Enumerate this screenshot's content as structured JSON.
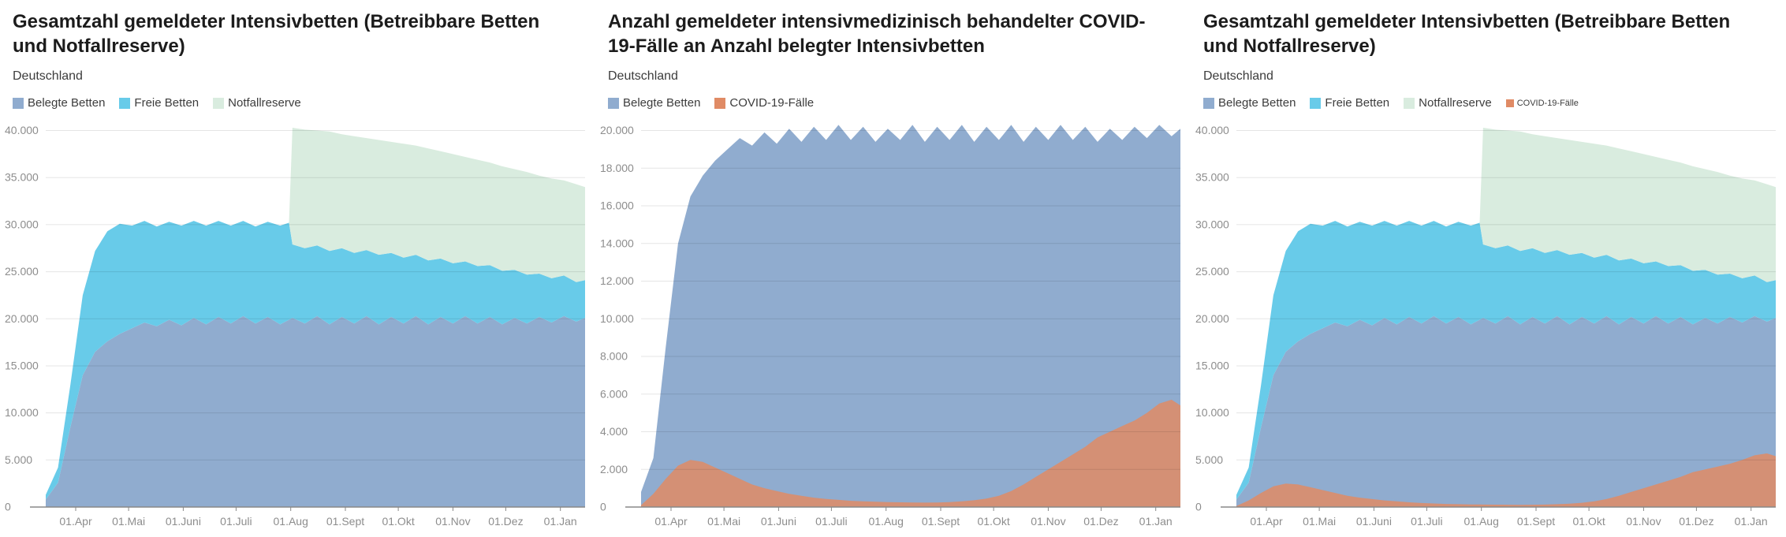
{
  "page": {
    "background": "#ffffff"
  },
  "chart_data": [
    {
      "type": "area",
      "stacked": true,
      "title": "Gesamtzahl gemeldeter Intensivbetten (Betreibbare Betten und Notfallreserve)",
      "subtitle": "Deutschland",
      "x_axis": {
        "unit": "day-index",
        "domain_days": [
          0,
          306
        ],
        "ticks": [
          {
            "day": 17,
            "label": "01.Apr"
          },
          {
            "day": 47,
            "label": "01.Mai"
          },
          {
            "day": 78,
            "label": "01.Juni"
          },
          {
            "day": 108,
            "label": "01.Juli"
          },
          {
            "day": 139,
            "label": "01.Aug"
          },
          {
            "day": 170,
            "label": "01.Sept"
          },
          {
            "day": 200,
            "label": "01.Okt"
          },
          {
            "day": 231,
            "label": "01.Nov"
          },
          {
            "day": 261,
            "label": "01.Dez"
          },
          {
            "day": 292,
            "label": "01.Jan"
          }
        ]
      },
      "y_axis": {
        "min": 0,
        "max": 40000,
        "plot_max": 40800,
        "ticks": [
          {
            "value": 0,
            "label": "0"
          },
          {
            "value": 5000,
            "label": "5.000"
          },
          {
            "value": 10000,
            "label": "10.000"
          },
          {
            "value": 15000,
            "label": "15.000"
          },
          {
            "value": 20000,
            "label": "20.000"
          },
          {
            "value": 25000,
            "label": "25.000"
          },
          {
            "value": 30000,
            "label": "30.000"
          },
          {
            "value": 35000,
            "label": "35.000"
          },
          {
            "value": 40000,
            "label": "40.000"
          }
        ]
      },
      "days": [
        0,
        7,
        14,
        21,
        28,
        35,
        42,
        49,
        56,
        63,
        70,
        77,
        84,
        91,
        98,
        105,
        112,
        119,
        126,
        133,
        138,
        140,
        147,
        154,
        161,
        168,
        175,
        182,
        189,
        196,
        203,
        210,
        217,
        224,
        231,
        238,
        245,
        252,
        259,
        266,
        273,
        280,
        287,
        294,
        301,
        306
      ],
      "series": [
        {
          "name": "Belegte Betten",
          "color": "#90accf",
          "opacity": 1,
          "stacked": true,
          "values": [
            800,
            2600,
            8500,
            14000,
            16500,
            17600,
            18400,
            19000,
            19600,
            19200,
            19900,
            19300,
            20100,
            19400,
            20200,
            19500,
            20300,
            19500,
            20200,
            19400,
            19900,
            20100,
            19500,
            20300,
            19400,
            20200,
            19500,
            20300,
            19400,
            20200,
            19500,
            20300,
            19400,
            20200,
            19500,
            20300,
            19500,
            20200,
            19400,
            20100,
            19500,
            20200,
            19600,
            20300,
            19700,
            20100
          ]
        },
        {
          "name": "Freie Betten",
          "color": "#68cbe9",
          "opacity": 1,
          "stacked": true,
          "values": [
            500,
            1600,
            4500,
            8500,
            10700,
            11700,
            11700,
            10900,
            10800,
            10600,
            10400,
            10600,
            10300,
            10500,
            10200,
            10400,
            10100,
            10300,
            10100,
            10500,
            10300,
            7800,
            8000,
            7500,
            7800,
            7300,
            7500,
            7000,
            7400,
            6800,
            7000,
            6500,
            6800,
            6200,
            6400,
            5800,
            6100,
            5500,
            5700,
            5100,
            5200,
            4600,
            4700,
            4300,
            4200,
            4000
          ]
        },
        {
          "name": "Notfallreserve",
          "color": "#d9ecdf",
          "opacity": 1,
          "stacked": true,
          "values": [
            0,
            0,
            0,
            0,
            0,
            0,
            0,
            0,
            0,
            0,
            0,
            0,
            0,
            0,
            0,
            0,
            0,
            0,
            0,
            0,
            0,
            12400,
            12600,
            12200,
            12700,
            12100,
            12400,
            11900,
            12200,
            11800,
            12100,
            11600,
            11900,
            11400,
            11600,
            11100,
            11300,
            10900,
            11100,
            10700,
            10900,
            10400,
            10600,
            10100,
            10400,
            9900
          ]
        }
      ]
    },
    {
      "type": "area",
      "stacked": false,
      "title": "Anzahl gemeldeter intensivmedizinisch behandelter COVID-19-Fälle an Anzahl belegter Intensivbetten",
      "subtitle": "Deutschland",
      "x_axis": {
        "unit": "day-index",
        "domain_days": [
          0,
          306
        ],
        "ticks": [
          {
            "day": 17,
            "label": "01.Apr"
          },
          {
            "day": 47,
            "label": "01.Mai"
          },
          {
            "day": 78,
            "label": "01.Juni"
          },
          {
            "day": 108,
            "label": "01.Juli"
          },
          {
            "day": 139,
            "label": "01.Aug"
          },
          {
            "day": 170,
            "label": "01.Sept"
          },
          {
            "day": 200,
            "label": "01.Okt"
          },
          {
            "day": 231,
            "label": "01.Nov"
          },
          {
            "day": 261,
            "label": "01.Dez"
          },
          {
            "day": 292,
            "label": "01.Jan"
          }
        ]
      },
      "y_axis": {
        "min": 0,
        "max": 20000,
        "plot_max": 20400,
        "ticks": [
          {
            "value": 0,
            "label": "0"
          },
          {
            "value": 2000,
            "label": "2.000"
          },
          {
            "value": 4000,
            "label": "4.000"
          },
          {
            "value": 6000,
            "label": "6.000"
          },
          {
            "value": 8000,
            "label": "8.000"
          },
          {
            "value": 10000,
            "label": "10.000"
          },
          {
            "value": 12000,
            "label": "12.000"
          },
          {
            "value": 14000,
            "label": "14.000"
          },
          {
            "value": 16000,
            "label": "16.000"
          },
          {
            "value": 18000,
            "label": "18.000"
          },
          {
            "value": 20000,
            "label": "20.000"
          }
        ]
      },
      "days": [
        0,
        7,
        14,
        21,
        28,
        35,
        42,
        49,
        56,
        63,
        70,
        77,
        84,
        91,
        98,
        105,
        112,
        119,
        126,
        133,
        138,
        140,
        147,
        154,
        161,
        168,
        175,
        182,
        189,
        196,
        203,
        210,
        217,
        224,
        231,
        238,
        245,
        252,
        259,
        266,
        273,
        280,
        287,
        294,
        301,
        306
      ],
      "series": [
        {
          "name": "Belegte Betten",
          "color": "#90accf",
          "opacity": 1,
          "stacked": false,
          "values": [
            800,
            2600,
            8500,
            14000,
            16500,
            17600,
            18400,
            19000,
            19600,
            19200,
            19900,
            19300,
            20100,
            19400,
            20200,
            19500,
            20300,
            19500,
            20200,
            19400,
            19900,
            20100,
            19500,
            20300,
            19400,
            20200,
            19500,
            20300,
            19400,
            20200,
            19500,
            20300,
            19400,
            20200,
            19500,
            20300,
            19500,
            20200,
            19400,
            20100,
            19500,
            20200,
            19600,
            20300,
            19700,
            20100
          ]
        },
        {
          "name": "COVID-19-Fälle",
          "color": "#e08b65",
          "opacity": 0.85,
          "stacked": false,
          "values": [
            100,
            700,
            1500,
            2200,
            2500,
            2400,
            2100,
            1800,
            1500,
            1200,
            1000,
            850,
            700,
            600,
            500,
            430,
            380,
            330,
            300,
            280,
            270,
            260,
            250,
            240,
            235,
            240,
            260,
            300,
            360,
            450,
            600,
            850,
            1200,
            1600,
            2000,
            2400,
            2800,
            3200,
            3700,
            4000,
            4300,
            4600,
            5000,
            5500,
            5700,
            5400
          ]
        }
      ]
    },
    {
      "type": "area",
      "stacked": true,
      "title": "Gesamtzahl gemeldeter Intensivbetten (Betreibbare Betten und Notfallreserve)",
      "subtitle": "Deutschland",
      "x_axis": {
        "unit": "day-index",
        "domain_days": [
          0,
          306
        ],
        "ticks": [
          {
            "day": 17,
            "label": "01.Apr"
          },
          {
            "day": 47,
            "label": "01.Mai"
          },
          {
            "day": 78,
            "label": "01.Juni"
          },
          {
            "day": 108,
            "label": "01.Juli"
          },
          {
            "day": 139,
            "label": "01.Aug"
          },
          {
            "day": 170,
            "label": "01.Sept"
          },
          {
            "day": 200,
            "label": "01.Okt"
          },
          {
            "day": 231,
            "label": "01.Nov"
          },
          {
            "day": 261,
            "label": "01.Dez"
          },
          {
            "day": 292,
            "label": "01.Jan"
          }
        ]
      },
      "y_axis": {
        "min": 0,
        "max": 40000,
        "plot_max": 40800,
        "ticks": [
          {
            "value": 0,
            "label": "0"
          },
          {
            "value": 5000,
            "label": "5.000"
          },
          {
            "value": 10000,
            "label": "10.000"
          },
          {
            "value": 15000,
            "label": "15.000"
          },
          {
            "value": 20000,
            "label": "20.000"
          },
          {
            "value": 25000,
            "label": "25.000"
          },
          {
            "value": 30000,
            "label": "30.000"
          },
          {
            "value": 35000,
            "label": "35.000"
          },
          {
            "value": 40000,
            "label": "40.000"
          }
        ]
      },
      "days": [
        0,
        7,
        14,
        21,
        28,
        35,
        42,
        49,
        56,
        63,
        70,
        77,
        84,
        91,
        98,
        105,
        112,
        119,
        126,
        133,
        138,
        140,
        147,
        154,
        161,
        168,
        175,
        182,
        189,
        196,
        203,
        210,
        217,
        224,
        231,
        238,
        245,
        252,
        259,
        266,
        273,
        280,
        287,
        294,
        301,
        306
      ],
      "series": [
        {
          "name": "Belegte Betten",
          "color": "#90accf",
          "opacity": 1,
          "stacked": true,
          "values": [
            800,
            2600,
            8500,
            14000,
            16500,
            17600,
            18400,
            19000,
            19600,
            19200,
            19900,
            19300,
            20100,
            19400,
            20200,
            19500,
            20300,
            19500,
            20200,
            19400,
            19900,
            20100,
            19500,
            20300,
            19400,
            20200,
            19500,
            20300,
            19400,
            20200,
            19500,
            20300,
            19400,
            20200,
            19500,
            20300,
            19500,
            20200,
            19400,
            20100,
            19500,
            20200,
            19600,
            20300,
            19700,
            20100
          ]
        },
        {
          "name": "Freie Betten",
          "color": "#68cbe9",
          "opacity": 1,
          "stacked": true,
          "values": [
            500,
            1600,
            4500,
            8500,
            10700,
            11700,
            11700,
            10900,
            10800,
            10600,
            10400,
            10600,
            10300,
            10500,
            10200,
            10400,
            10100,
            10300,
            10100,
            10500,
            10300,
            7800,
            8000,
            7500,
            7800,
            7300,
            7500,
            7000,
            7400,
            6800,
            7000,
            6500,
            6800,
            6200,
            6400,
            5800,
            6100,
            5500,
            5700,
            5100,
            5200,
            4600,
            4700,
            4300,
            4200,
            4000
          ]
        },
        {
          "name": "Notfallreserve",
          "color": "#d9ecdf",
          "opacity": 1,
          "stacked": true,
          "values": [
            0,
            0,
            0,
            0,
            0,
            0,
            0,
            0,
            0,
            0,
            0,
            0,
            0,
            0,
            0,
            0,
            0,
            0,
            0,
            0,
            0,
            12400,
            12600,
            12200,
            12700,
            12100,
            12400,
            11900,
            12200,
            11800,
            12100,
            11600,
            11900,
            11400,
            11600,
            11100,
            11300,
            10900,
            11100,
            10700,
            10900,
            10400,
            10600,
            10100,
            10400,
            9900
          ]
        },
        {
          "name": "COVID-19-Fälle",
          "color": "#e08b65",
          "opacity": 0.85,
          "stacked": false,
          "legend_small": true,
          "values": [
            100,
            700,
            1500,
            2200,
            2500,
            2400,
            2100,
            1800,
            1500,
            1200,
            1000,
            850,
            700,
            600,
            500,
            430,
            380,
            330,
            300,
            280,
            270,
            260,
            250,
            240,
            235,
            240,
            260,
            300,
            360,
            450,
            600,
            850,
            1200,
            1600,
            2000,
            2400,
            2800,
            3200,
            3700,
            4000,
            4300,
            4600,
            5000,
            5500,
            5700,
            5400
          ]
        }
      ]
    }
  ]
}
